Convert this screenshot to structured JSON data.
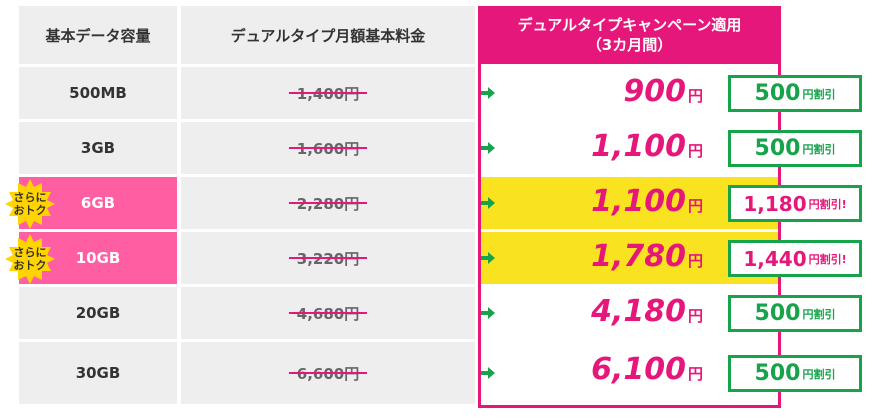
{
  "header": {
    "size_col": "基本データ容量",
    "price_col": "デュアルタイプ月額基本料金",
    "campaign_line1": "デュアルタイプキャンペーン適用",
    "campaign_line2": "（3カ月間）"
  },
  "badge": {
    "line1": "さらに",
    "line2": "おトク"
  },
  "colors": {
    "pink": "#e6177a",
    "light_pink": "#ff5fa2",
    "yellow": "#f9e21f",
    "green": "#16a34a",
    "badge_yellow": "#ffd400"
  },
  "rows": [
    {
      "size": "500MB",
      "original_price": "1,400円",
      "campaign_price": "900",
      "yen": "円",
      "discount": "500",
      "discount_unit": "円割引",
      "highlight": false
    },
    {
      "size": "3GB",
      "original_price": "1,600円",
      "campaign_price": "1,100",
      "yen": "円",
      "discount": "500",
      "discount_unit": "円割引",
      "highlight": false
    },
    {
      "size": "6GB",
      "original_price": "2,280円",
      "campaign_price": "1,100",
      "yen": "円",
      "discount": "1,180",
      "discount_unit": "円割引!",
      "highlight": true
    },
    {
      "size": "10GB",
      "original_price": "3,220円",
      "campaign_price": "1,780",
      "yen": "円",
      "discount": "1,440",
      "discount_unit": "円割引!",
      "highlight": true
    },
    {
      "size": "20GB",
      "original_price": "4,680円",
      "campaign_price": "4,180",
      "yen": "円",
      "discount": "500",
      "discount_unit": "円割引",
      "highlight": false
    },
    {
      "size": "30GB",
      "original_price": "6,600円",
      "campaign_price": "6,100",
      "yen": "円",
      "discount": "500",
      "discount_unit": "円割引",
      "highlight": false
    }
  ]
}
